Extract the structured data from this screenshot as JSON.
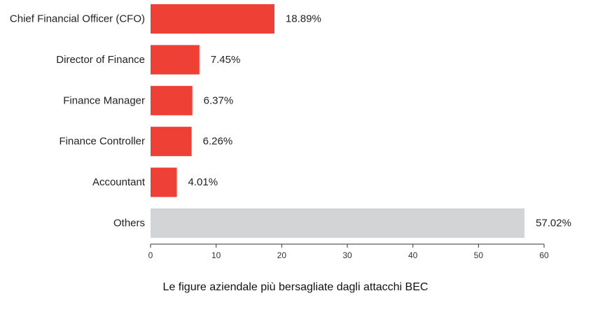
{
  "chart_data": {
    "type": "bar",
    "orientation": "horizontal",
    "categories": [
      "Chief Financial Officer (CFO)",
      "Director of Finance",
      "Finance Manager",
      "Finance Controller",
      "Accountant",
      "Others"
    ],
    "values": [
      18.89,
      7.45,
      6.37,
      6.26,
      4.01,
      57.02
    ],
    "value_labels": [
      "18.89%",
      "7.45%",
      "6.37%",
      "6.26%",
      "4.01%",
      "57.02%"
    ],
    "bar_colors": [
      "#ee4035",
      "#ee4035",
      "#ee4035",
      "#ee4035",
      "#ee4035",
      "#d3d4d5"
    ],
    "xlim": [
      0,
      60
    ],
    "xticks": [
      0,
      10,
      20,
      30,
      40,
      50,
      60
    ],
    "grid": false,
    "title": "",
    "xlabel": "",
    "ylabel": ""
  },
  "caption": "Le figure aziendale più bersagliate dagli attacchi BEC"
}
